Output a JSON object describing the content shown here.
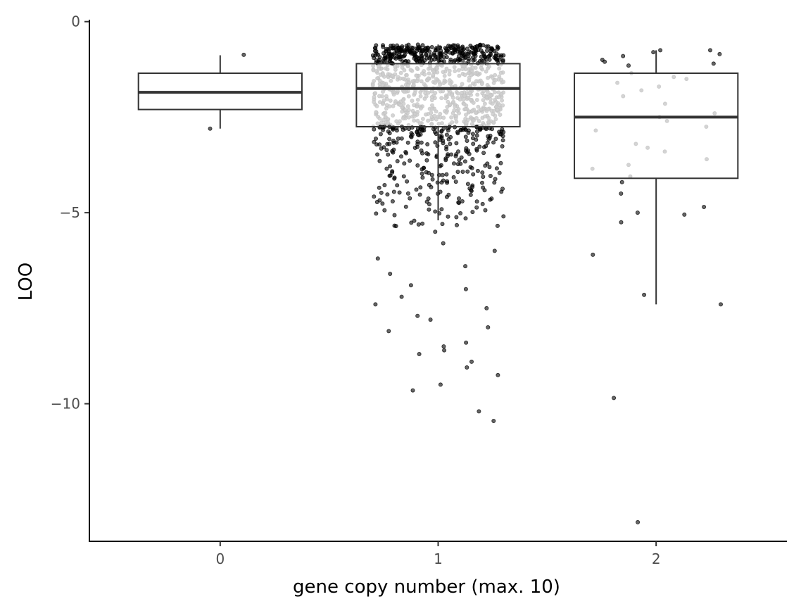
{
  "chart_data": {
    "type": "boxplot",
    "xlabel": "gene copy number (max. 10)",
    "ylabel": "LOO",
    "x_categories": [
      "0",
      "1",
      "2"
    ],
    "y_ticks": [
      0,
      -5,
      -10
    ],
    "y_tick_labels": [
      "0",
      "−5",
      "−10"
    ],
    "ylim": [
      -13.6,
      0.05
    ],
    "xlim": [
      -0.6,
      2.6
    ],
    "grid": false,
    "legend": "none",
    "colors": {
      "box_line": "#333333",
      "median": "#333333",
      "point_outlier": "#000000",
      "point_inside": "#cccccc"
    },
    "boxes": [
      {
        "category": "0",
        "q1": -2.3,
        "median": -1.85,
        "q3": -1.35,
        "whisker_low": -2.8,
        "whisker_high": -0.88
      },
      {
        "category": "1",
        "q1": -2.75,
        "median": -1.75,
        "q3": -1.1,
        "whisker_low": -5.2,
        "whisker_high": -0.6
      },
      {
        "category": "2",
        "q1": -4.1,
        "median": -2.5,
        "q3": -1.35,
        "whisker_low": -7.4,
        "whisker_high": -0.75
      }
    ],
    "points": [
      {
        "category": "0",
        "y": [
          -0.87,
          -2.8
        ]
      },
      {
        "category": "2",
        "y": [
          -0.8,
          -0.85,
          -0.9,
          -0.75,
          -0.75,
          -1.0,
          -1.05,
          -1.1,
          -1.15,
          -1.35,
          -1.45,
          -1.5,
          -1.6,
          -1.7,
          -1.8,
          -1.95,
          -2.15,
          -2.4,
          -2.5,
          -2.6,
          -2.75,
          -2.85,
          -3.2,
          -3.3,
          -3.4,
          -3.6,
          -3.75,
          -3.85,
          -4.05,
          -4.2,
          -4.5,
          -4.85,
          -5.0,
          -5.05,
          -5.25,
          -6.1,
          -7.15,
          -7.4,
          -9.85,
          -13.1
        ]
      }
    ],
    "dense_points": {
      "category": "1",
      "n_outer_top": 320,
      "n_inside": 520,
      "n_below": 300,
      "tail": [
        -5.5,
        -5.8,
        -6.0,
        -6.2,
        -6.4,
        -6.6,
        -6.9,
        -7.0,
        -7.2,
        -7.4,
        -7.5,
        -7.7,
        -7.8,
        -8.0,
        -8.1,
        -8.4,
        -8.5,
        -8.6,
        -8.7,
        -8.9,
        -9.05,
        -9.25,
        -9.5,
        -9.65,
        -10.2,
        -10.45
      ]
    }
  }
}
